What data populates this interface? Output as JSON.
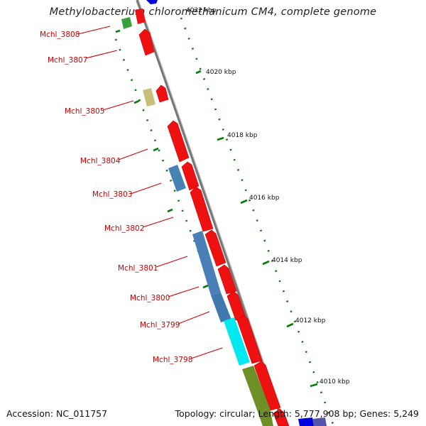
{
  "title": "Methylobacterium chloromethanicum CM4, complete genome",
  "footer": {
    "accession": "Accession: NC_011757",
    "summary": "Topology: circular; Length: 5,777,908 bp; Genes: 5,249"
  },
  "colors": {
    "backbone": "#888888",
    "forward_cds": "#ee0000",
    "reverse_blue": "#4682b4",
    "reverse_cyan": "#00e5ee",
    "reverse_olive": "#6b8e23",
    "reverse_green": "#3a9a3a",
    "reverse_khaki": "#bdb76b",
    "dark_blue": "#0000cc",
    "label_red": "#cc0000",
    "tick_green": "#0a7a0a"
  },
  "tick_labels": [
    "4022 kbp",
    "4020 kbp",
    "4018 kbp",
    "4016 kbp",
    "4014 kbp",
    "4012 kbp",
    "4010 kbp"
  ],
  "gene_labels": [
    "Mchl_3808",
    "Mchl_3807",
    "Mchl_3805",
    "Mchl_3804",
    "Mchl_3803",
    "Mchl_3802",
    "Mchl_3801",
    "Mchl_3800",
    "Mchl_3799",
    "Mchl_3798"
  ]
}
